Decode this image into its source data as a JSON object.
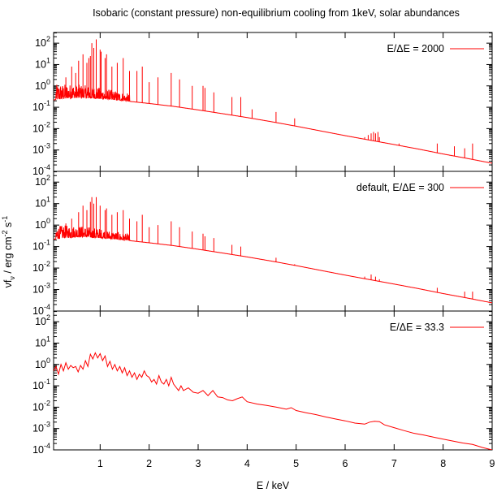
{
  "chart_data": {
    "type": "line",
    "title": "Isobaric (constant pressure) non-equilibrium cooling from 1keV, solar abundances",
    "xlabel": "E / keV",
    "ylabel_parts": {
      "nu": "ν",
      "f": "f",
      "sub": "ν",
      "rest": " / erg cm",
      "exp1": "-2",
      "s": " s",
      "exp2": "-1"
    },
    "x_range": [
      0.05,
      9
    ],
    "x_ticks": [
      {
        "value": 1,
        "label": "1"
      },
      {
        "value": 2,
        "label": "2"
      },
      {
        "value": 3,
        "label": "3"
      },
      {
        "value": 4,
        "label": "4"
      },
      {
        "value": 5,
        "label": "5"
      },
      {
        "value": 6,
        "label": "6"
      },
      {
        "value": 7,
        "label": "7"
      },
      {
        "value": 8,
        "label": "8"
      },
      {
        "value": 9,
        "label": "9"
      }
    ],
    "y_scale": "log",
    "y_range": [
      0.0001,
      316
    ],
    "y_ticks": [
      {
        "value": 100,
        "base": "10",
        "exp": "2"
      },
      {
        "value": 10,
        "base": "10",
        "exp": "1"
      },
      {
        "value": 1,
        "base": "10",
        "exp": "0"
      },
      {
        "value": 0.1,
        "base": "10",
        "exp": "-1"
      },
      {
        "value": 0.01,
        "base": "10",
        "exp": "-2"
      },
      {
        "value": 0.001,
        "base": "10",
        "exp": "-3"
      },
      {
        "value": 0.0001,
        "base": "10",
        "exp": "-4"
      }
    ],
    "color": "#ff0000",
    "grid": false,
    "legend_position": "top-right",
    "panels": [
      {
        "legend": "E/ΔE = 2000",
        "continuum": [
          [
            0.05,
            0.22
          ],
          [
            0.3,
            0.26
          ],
          [
            0.6,
            0.28
          ],
          [
            1,
            0.25
          ],
          [
            1.5,
            0.2
          ],
          [
            2,
            0.15
          ],
          [
            2.5,
            0.11
          ],
          [
            3,
            0.075
          ],
          [
            3.5,
            0.05
          ],
          [
            4,
            0.033
          ],
          [
            4.5,
            0.021
          ],
          [
            5,
            0.013
          ],
          [
            5.5,
            0.0078
          ],
          [
            6,
            0.0047
          ],
          [
            6.5,
            0.0029
          ],
          [
            7,
            0.0018
          ],
          [
            7.5,
            0.0011
          ],
          [
            8,
            0.00065
          ],
          [
            8.5,
            0.0004
          ],
          [
            9,
            0.00024
          ]
        ],
        "noise": {
          "from": 0.1,
          "to": 1.6,
          "amp": 4
        },
        "lines": [
          [
            0.3,
            2.5
          ],
          [
            0.42,
            8
          ],
          [
            0.5,
            4
          ],
          [
            0.56,
            15
          ],
          [
            0.65,
            30
          ],
          [
            0.73,
            12
          ],
          [
            0.77,
            20
          ],
          [
            0.8,
            25
          ],
          [
            0.83,
            100
          ],
          [
            0.87,
            60
          ],
          [
            0.92,
            150
          ],
          [
            1.0,
            50
          ],
          [
            1.02,
            40
          ],
          [
            1.1,
            20
          ],
          [
            1.13,
            30
          ],
          [
            1.24,
            8
          ],
          [
            1.35,
            12
          ],
          [
            1.47,
            20
          ],
          [
            1.6,
            5
          ],
          [
            1.75,
            5
          ],
          [
            1.86,
            8
          ],
          [
            2.0,
            1.5
          ],
          [
            2.18,
            2.5
          ],
          [
            2.45,
            4
          ],
          [
            2.62,
            2
          ],
          [
            2.88,
            1
          ],
          [
            3.1,
            1
          ],
          [
            3.14,
            0.8
          ],
          [
            3.32,
            0.5
          ],
          [
            3.69,
            0.3
          ],
          [
            3.87,
            0.3
          ],
          [
            4.1,
            0.08
          ],
          [
            4.59,
            0.06
          ],
          [
            4.97,
            0.03
          ],
          [
            6.4,
            0.004
          ],
          [
            6.47,
            0.005
          ],
          [
            6.53,
            0.006
          ],
          [
            6.58,
            0.007
          ],
          [
            6.62,
            0.006
          ],
          [
            6.67,
            0.007
          ],
          [
            6.7,
            0.004
          ],
          [
            7.1,
            0.002
          ],
          [
            7.88,
            0.002
          ],
          [
            8.23,
            0.0015
          ],
          [
            8.44,
            0.0012
          ],
          [
            8.6,
            0.002
          ]
        ]
      },
      {
        "legend": "default, E/ΔE = 300",
        "continuum": [
          [
            0.05,
            0.22
          ],
          [
            0.3,
            0.26
          ],
          [
            0.6,
            0.28
          ],
          [
            1,
            0.25
          ],
          [
            1.5,
            0.2
          ],
          [
            2,
            0.15
          ],
          [
            2.5,
            0.11
          ],
          [
            3,
            0.075
          ],
          [
            3.5,
            0.05
          ],
          [
            4,
            0.033
          ],
          [
            4.5,
            0.021
          ],
          [
            5,
            0.013
          ],
          [
            5.5,
            0.0078
          ],
          [
            6,
            0.0047
          ],
          [
            6.5,
            0.0029
          ],
          [
            7,
            0.0018
          ],
          [
            7.5,
            0.0011
          ],
          [
            8,
            0.00065
          ],
          [
            8.5,
            0.0004
          ],
          [
            9,
            0.00024
          ]
        ],
        "noise": {
          "from": 0.1,
          "to": 1.6,
          "amp": 3
        },
        "lines": [
          [
            0.3,
            1.2
          ],
          [
            0.42,
            2
          ],
          [
            0.56,
            4
          ],
          [
            0.65,
            8
          ],
          [
            0.73,
            5
          ],
          [
            0.8,
            12
          ],
          [
            0.83,
            20
          ],
          [
            0.87,
            10
          ],
          [
            0.92,
            20
          ],
          [
            1.0,
            8
          ],
          [
            1.1,
            5
          ],
          [
            1.13,
            6
          ],
          [
            1.24,
            3
          ],
          [
            1.35,
            4
          ],
          [
            1.47,
            5
          ],
          [
            1.6,
            2
          ],
          [
            1.75,
            1.5
          ],
          [
            1.86,
            3
          ],
          [
            2.0,
            0.8
          ],
          [
            2.18,
            1
          ],
          [
            2.45,
            1.5
          ],
          [
            2.62,
            0.8
          ],
          [
            2.88,
            0.5
          ],
          [
            3.1,
            0.4
          ],
          [
            3.14,
            0.3
          ],
          [
            3.32,
            0.25
          ],
          [
            3.69,
            0.12
          ],
          [
            3.87,
            0.1
          ],
          [
            4.59,
            0.03
          ],
          [
            4.97,
            0.015
          ],
          [
            6.4,
            0.004
          ],
          [
            6.53,
            0.005
          ],
          [
            6.62,
            0.004
          ],
          [
            6.7,
            0.003
          ],
          [
            7.88,
            0.0012
          ],
          [
            8.44,
            0.0008
          ],
          [
            8.6,
            0.0008
          ]
        ]
      },
      {
        "legend": "E/ΔE = 33.3",
        "polyline": [
          [
            0.05,
            0.5
          ],
          [
            0.1,
            0.8
          ],
          [
            0.15,
            0.35
          ],
          [
            0.2,
            1.0
          ],
          [
            0.25,
            0.5
          ],
          [
            0.3,
            1.2
          ],
          [
            0.35,
            0.6
          ],
          [
            0.4,
            0.9
          ],
          [
            0.45,
            0.7
          ],
          [
            0.5,
            0.8
          ],
          [
            0.55,
            0.45
          ],
          [
            0.6,
            0.9
          ],
          [
            0.65,
            0.6
          ],
          [
            0.7,
            1.5
          ],
          [
            0.75,
            0.8
          ],
          [
            0.8,
            3
          ],
          [
            0.85,
            1.8
          ],
          [
            0.9,
            3.5
          ],
          [
            0.95,
            2
          ],
          [
            1.0,
            3.2
          ],
          [
            1.05,
            1.5
          ],
          [
            1.1,
            2.5
          ],
          [
            1.15,
            0.8
          ],
          [
            1.2,
            1.4
          ],
          [
            1.25,
            0.6
          ],
          [
            1.3,
            1.0
          ],
          [
            1.35,
            0.5
          ],
          [
            1.4,
            0.8
          ],
          [
            1.45,
            0.4
          ],
          [
            1.5,
            0.7
          ],
          [
            1.55,
            0.3
          ],
          [
            1.6,
            0.5
          ],
          [
            1.65,
            0.25
          ],
          [
            1.7,
            0.4
          ],
          [
            1.75,
            0.2
          ],
          [
            1.8,
            0.35
          ],
          [
            1.85,
            0.25
          ],
          [
            1.9,
            0.5
          ],
          [
            1.95,
            0.3
          ],
          [
            2.0,
            0.25
          ],
          [
            2.05,
            0.15
          ],
          [
            2.1,
            0.2
          ],
          [
            2.15,
            0.12
          ],
          [
            2.2,
            0.3
          ],
          [
            2.25,
            0.15
          ],
          [
            2.3,
            0.12
          ],
          [
            2.35,
            0.2
          ],
          [
            2.4,
            0.1
          ],
          [
            2.45,
            0.25
          ],
          [
            2.5,
            0.12
          ],
          [
            2.6,
            0.06
          ],
          [
            2.65,
            0.1
          ],
          [
            2.7,
            0.06
          ],
          [
            2.8,
            0.08
          ],
          [
            2.9,
            0.05
          ],
          [
            3.0,
            0.045
          ],
          [
            3.1,
            0.06
          ],
          [
            3.2,
            0.035
          ],
          [
            3.3,
            0.06
          ],
          [
            3.4,
            0.03
          ],
          [
            3.5,
            0.028
          ],
          [
            3.6,
            0.022
          ],
          [
            3.7,
            0.02
          ],
          [
            3.8,
            0.025
          ],
          [
            3.9,
            0.03
          ],
          [
            4.0,
            0.018
          ],
          [
            4.2,
            0.014
          ],
          [
            4.4,
            0.012
          ],
          [
            4.6,
            0.01
          ],
          [
            4.8,
            0.008
          ],
          [
            4.9,
            0.0095
          ],
          [
            5.0,
            0.007
          ],
          [
            5.2,
            0.0055
          ],
          [
            5.4,
            0.0045
          ],
          [
            5.6,
            0.0035
          ],
          [
            5.8,
            0.0028
          ],
          [
            6.0,
            0.0023
          ],
          [
            6.2,
            0.0018
          ],
          [
            6.4,
            0.0016
          ],
          [
            6.5,
            0.002
          ],
          [
            6.6,
            0.0022
          ],
          [
            6.7,
            0.0021
          ],
          [
            6.8,
            0.0015
          ],
          [
            7.0,
            0.0011
          ],
          [
            7.2,
            0.0008
          ],
          [
            7.4,
            0.0006
          ],
          [
            7.6,
            0.0005
          ],
          [
            7.8,
            0.0004
          ],
          [
            8.0,
            0.00032
          ],
          [
            8.2,
            0.00026
          ],
          [
            8.4,
            0.00021
          ],
          [
            8.6,
            0.00018
          ],
          [
            8.8,
            0.00013
          ],
          [
            9.0,
            0.0001
          ]
        ]
      }
    ]
  }
}
